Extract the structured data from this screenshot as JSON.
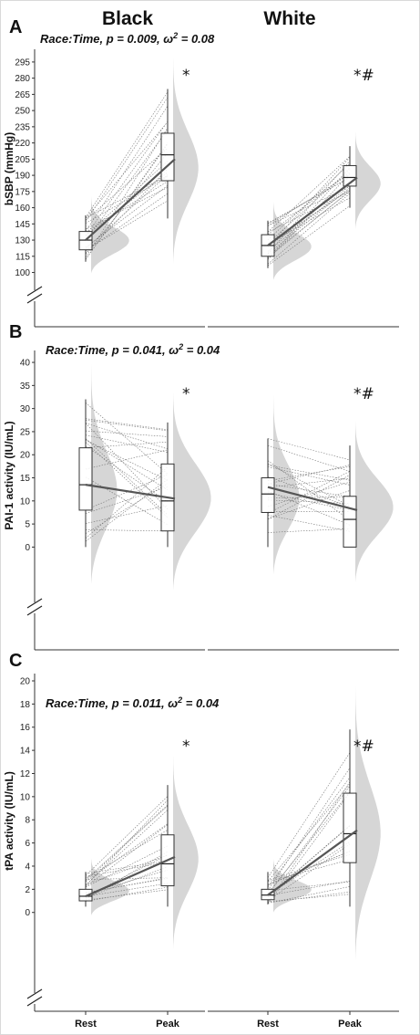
{
  "group_labels": [
    "Black",
    "White"
  ],
  "x_categories": [
    "Rest",
    "Peak"
  ],
  "chart_data": [
    {
      "type": "box",
      "panel_label": "A",
      "ylabel": "bSBP (mmHg)",
      "annotation": {
        "prefix": "Race:Time, p = 0.009, ",
        "omega_label": "ω",
        "sup": "2",
        "suffix": " = 0.08"
      },
      "yticks": [
        100,
        115,
        130,
        145,
        160,
        175,
        190,
        205,
        220,
        235,
        250,
        265,
        280,
        295
      ],
      "ylim": [
        92,
        300
      ],
      "axis_break": true,
      "groups": [
        {
          "name": "Black",
          "significance": "*",
          "rest": {
            "q1": 121,
            "median": 130,
            "q3": 138,
            "whisker_low": 110,
            "whisker_high": 153
          },
          "peak": {
            "q1": 185,
            "median": 209,
            "q3": 229,
            "whisker_low": 150,
            "whisker_high": 270
          },
          "mean_line": [
            130,
            205
          ]
        },
        {
          "name": "White",
          "significance": "*#",
          "rest": {
            "q1": 115,
            "median": 125,
            "q3": 135,
            "whisker_low": 104,
            "whisker_high": 148
          },
          "peak": {
            "q1": 180,
            "median": 188,
            "q3": 199,
            "whisker_low": 160,
            "whisker_high": 217
          },
          "mean_line": [
            125,
            188
          ]
        }
      ]
    },
    {
      "type": "box",
      "panel_label": "B",
      "ylabel": "PAI-1 activity (IU/mL)",
      "annotation": {
        "prefix": "Race:Time, p = 0.041, ",
        "omega_label": "ω",
        "sup": "2",
        "suffix": " = 0.04"
      },
      "yticks": [
        0,
        5,
        10,
        15,
        20,
        25,
        30,
        35,
        40
      ],
      "ylim": [
        -10,
        41
      ],
      "axis_break": true,
      "groups": [
        {
          "name": "Black",
          "significance": "*",
          "rest": {
            "q1": 8,
            "median": 13.5,
            "q3": 21.5,
            "whisker_low": 0,
            "whisker_high": 32
          },
          "peak": {
            "q1": 3.5,
            "median": 10,
            "q3": 18,
            "whisker_low": 0,
            "whisker_high": 27
          },
          "mean_line": [
            13.5,
            10.5
          ]
        },
        {
          "name": "White",
          "significance": "*#",
          "rest": {
            "q1": 7.5,
            "median": 11.5,
            "q3": 15,
            "whisker_low": 0,
            "whisker_high": 23.5
          },
          "peak": {
            "q1": 0,
            "median": 6,
            "q3": 11,
            "whisker_low": 0,
            "whisker_high": 22
          },
          "mean_line": [
            13,
            8
          ]
        }
      ]
    },
    {
      "type": "box",
      "panel_label": "C",
      "ylabel": "tPA activity (IU/mL)",
      "annotation": {
        "prefix": "Race:Time, p = 0.011, ",
        "omega_label": "ω",
        "sup": "2",
        "suffix": " = 0.04"
      },
      "yticks": [
        0,
        2,
        4,
        6,
        8,
        10,
        12,
        14,
        16,
        18,
        20
      ],
      "ylim": [
        -4.2,
        20
      ],
      "axis_break": true,
      "groups": [
        {
          "name": "Black",
          "significance": "*",
          "rest": {
            "q1": 1,
            "median": 1.4,
            "q3": 2,
            "whisker_low": 0.5,
            "whisker_high": 3.5
          },
          "peak": {
            "q1": 2.3,
            "median": 4.2,
            "q3": 6.7,
            "whisker_low": 0.5,
            "whisker_high": 11
          },
          "mean_line": [
            1.4,
            4.8
          ]
        },
        {
          "name": "White",
          "significance": "*#",
          "rest": {
            "q1": 1.1,
            "median": 1.5,
            "q3": 2,
            "whisker_low": 0.7,
            "whisker_high": 3.5
          },
          "peak": {
            "q1": 4.3,
            "median": 6.8,
            "q3": 10.3,
            "whisker_low": 0.5,
            "whisker_high": 15.8
          },
          "mean_line": [
            1.5,
            7.1
          ]
        }
      ]
    }
  ]
}
